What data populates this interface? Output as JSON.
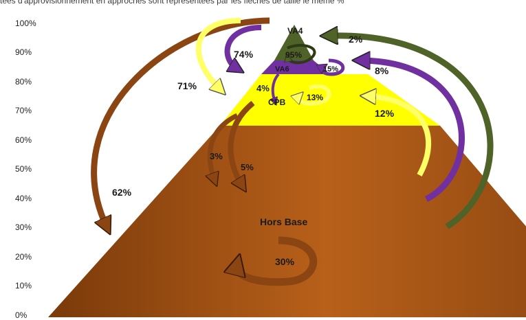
{
  "caption": "tées d'approvisionnement en approches sont représentées par les flèches de taille le même %",
  "y_axis": {
    "ticks": [
      "100%",
      "90%",
      "80%",
      "70%",
      "60%",
      "50%",
      "40%",
      "30%",
      "20%",
      "10%",
      "0%"
    ]
  },
  "colors": {
    "va4": "#4f6228",
    "va6": "#7030a0",
    "cpb": "#ffff00",
    "hors_base": "#a0520e",
    "arrow_brown": "#8b4513",
    "arrow_yellow": "#ffff66",
    "arrow_purple": "#7030a0",
    "arrow_green": "#4f6228"
  },
  "layers": {
    "va4": "VA4",
    "va6": "VA6",
    "cpb": "CPB",
    "hors_base": "Hors Base"
  },
  "percentages": {
    "va4_to_hb": "62%",
    "va4_to_cpb": "71%",
    "va4_to_va6": "74%",
    "va4_self": "95%",
    "hb_to_va4": "2%",
    "hb_to_va6": "8%",
    "hb_to_cpb": "12%",
    "va6_self": "15%",
    "cpb_self": "13%",
    "va6_to_cpb": "4%",
    "cpb_to_hb_a": "3%",
    "cpb_to_hb_b": "5%",
    "hb_self": "30%"
  }
}
